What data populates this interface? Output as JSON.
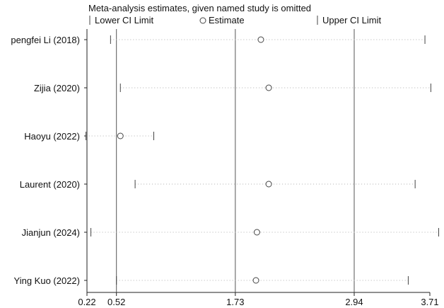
{
  "chart_data": {
    "type": "scatter",
    "title": "Meta-analysis estimates, given named study is omitted",
    "legend": {
      "placement": "top",
      "items": [
        {
          "label": "Lower CI Limit",
          "marker": "tick"
        },
        {
          "label": "Estimate",
          "marker": "circle"
        },
        {
          "label": "Upper CI Limit",
          "marker": "tick"
        }
      ]
    },
    "xlim": [
      0.22,
      3.71
    ],
    "x_ticks": [
      0.22,
      0.52,
      1.73,
      2.94,
      3.71
    ],
    "x_tick_labels": [
      "0.22",
      "0.52",
      "1.73",
      "2.94",
      "3.71"
    ],
    "reference_lines": [
      0.52,
      1.73,
      2.94
    ],
    "studies": [
      {
        "label": "pengfei Li (2018)",
        "lower": 0.46,
        "estimate": 1.99,
        "upper": 3.66
      },
      {
        "label": "Zijia (2020)",
        "lower": 0.56,
        "estimate": 2.07,
        "upper": 3.72
      },
      {
        "label": "Haoyu (2022)",
        "lower": 0.21,
        "estimate": 0.56,
        "upper": 0.9
      },
      {
        "label": "Laurent (2020)",
        "lower": 0.71,
        "estimate": 2.07,
        "upper": 3.56
      },
      {
        "label": "Jianjun  (2024)",
        "lower": 0.26,
        "estimate": 1.95,
        "upper": 3.8
      },
      {
        "label": "Ying Kuo (2022)",
        "lower": 0.52,
        "estimate": 1.94,
        "upper": 3.49
      }
    ],
    "colors": {
      "axis": "#222222",
      "dots": "#b0b0b0",
      "marker": "#444444",
      "ref_line": "#555555"
    }
  }
}
